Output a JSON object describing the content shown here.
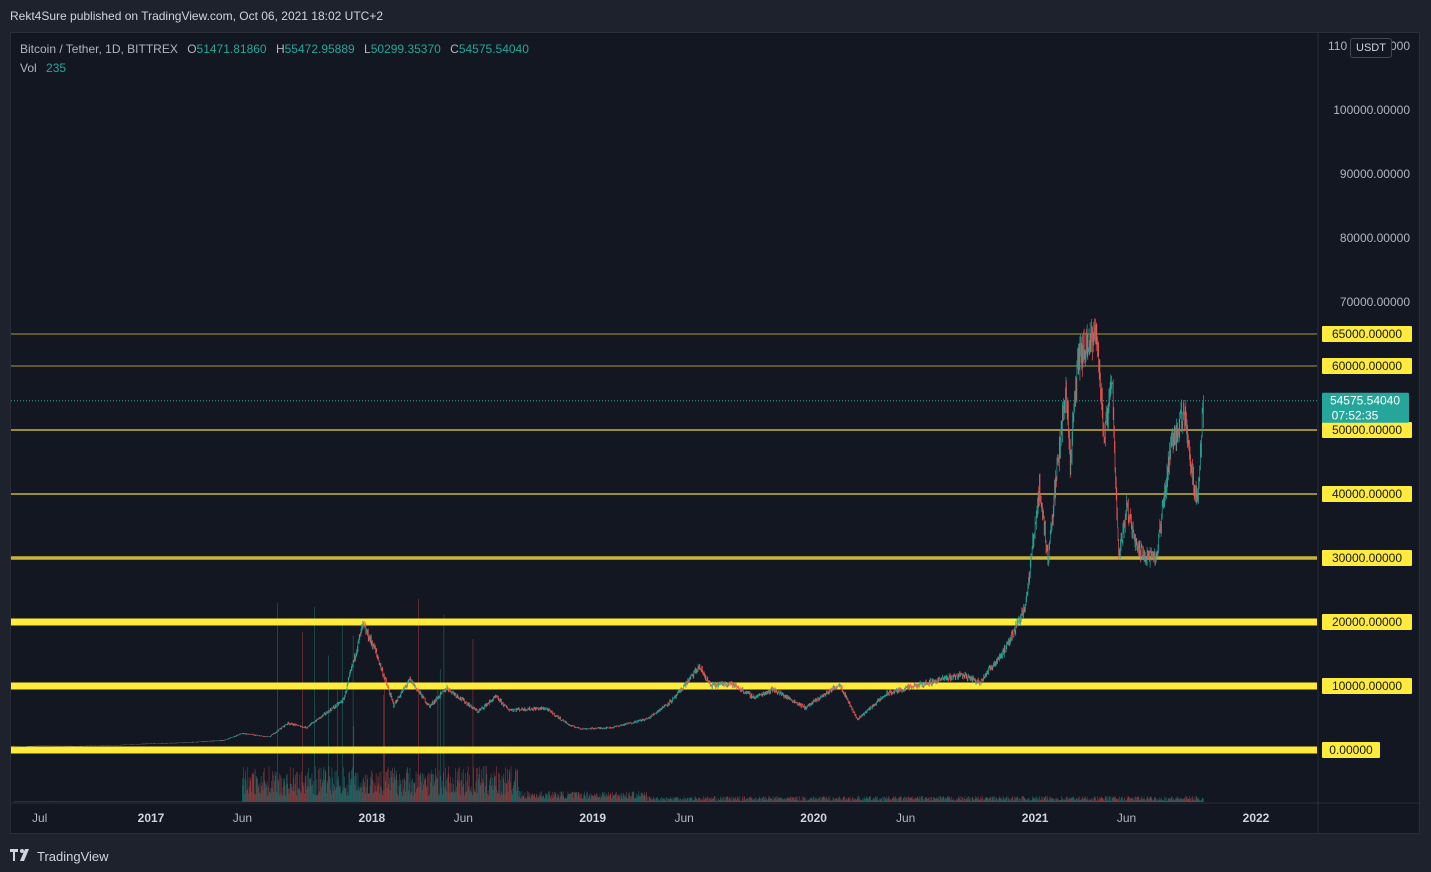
{
  "header": {
    "published": "Rekt4Sure published on TradingView.com, Oct 06, 2021 18:02 UTC+2"
  },
  "legend": {
    "symbol": "Bitcoin / Tether, 1D, BITTREX",
    "open_label": "O",
    "open": "51471.81860",
    "high_label": "H",
    "high": "55472.95889",
    "low_label": "L",
    "low": "50299.35370",
    "close_label": "C",
    "close": "54575.54040",
    "vol_label": "Vol",
    "vol": "235"
  },
  "currency_badge": "USDT",
  "footer": {
    "brand": "TradingView"
  },
  "chart_data": {
    "type": "candlestick",
    "symbol": "Bitcoin / Tether",
    "interval": "1D",
    "exchange": "BITTREX",
    "y_axis": {
      "ticks": [
        0,
        10000,
        20000,
        30000,
        40000,
        50000,
        60000,
        65000,
        70000,
        80000,
        90000,
        100000
      ],
      "tick_labels": [
        "0.00000",
        "10000.00000",
        "20000.00000",
        "30000.00000",
        "40000.00000",
        "50000.00000",
        "60000.00000",
        "65000.00000",
        "70000.00000",
        "80000.00000",
        "90000.00000",
        "100000.00000"
      ],
      "top_partial_label": "110",
      "top_partial_suffix": "000",
      "range": [
        -2000,
        112000
      ]
    },
    "x_axis": {
      "tick_labels": [
        "Jul",
        "2017",
        "Jun",
        "2018",
        "Jun",
        "2019",
        "Jun",
        "2020",
        "Jun",
        "2021",
        "Jun",
        "2022"
      ],
      "ticks": [
        "2016-07-01",
        "2017-01-01",
        "2017-06-01",
        "2018-01-01",
        "2018-06-01",
        "2019-01-01",
        "2019-06-01",
        "2020-01-01",
        "2020-06-01",
        "2021-01-01",
        "2021-06-01",
        "2022-01-01"
      ]
    },
    "horizontal_levels": [
      {
        "price": 0,
        "label": "0.00000",
        "color": "#ffeb3b",
        "weight": "thick"
      },
      {
        "price": 10000,
        "label": "10000.00000",
        "color": "#ffeb3b",
        "weight": "thick"
      },
      {
        "price": 20000,
        "label": "20000.00000",
        "color": "#ffeb3b",
        "weight": "thick"
      },
      {
        "price": 30000,
        "label": "30000.00000",
        "color": "#c9b33a",
        "weight": "medium"
      },
      {
        "price": 40000,
        "label": "40000.00000",
        "color": "#c9b33a",
        "weight": "thin"
      },
      {
        "price": 50000,
        "label": "50000.00000",
        "color": "#c9b33a",
        "weight": "thin"
      },
      {
        "price": 60000,
        "label": "60000.00000",
        "color": "#a99a38",
        "weight": "hairline"
      },
      {
        "price": 65000,
        "label": "65000.00000",
        "color": "#a99a38",
        "weight": "hairline"
      }
    ],
    "last_price": {
      "price": 54575.5404,
      "label": "54575.54040",
      "countdown": "07:52:35",
      "color": "#26a69a"
    },
    "price_path": [
      [
        "2016-05-20",
        440
      ],
      [
        "2016-07-01",
        660
      ],
      [
        "2016-09-01",
        600
      ],
      [
        "2016-11-01",
        720
      ],
      [
        "2017-01-01",
        1000
      ],
      [
        "2017-03-01",
        1150
      ],
      [
        "2017-05-01",
        1500
      ],
      [
        "2017-06-01",
        2600
      ],
      [
        "2017-07-15",
        2000
      ],
      [
        "2017-08-15",
        4200
      ],
      [
        "2017-09-15",
        3500
      ],
      [
        "2017-10-15",
        5600
      ],
      [
        "2017-11-15",
        7800
      ],
      [
        "2017-12-17",
        19500
      ],
      [
        "2018-01-05",
        16000
      ],
      [
        "2018-02-06",
        7000
      ],
      [
        "2018-03-05",
        11000
      ],
      [
        "2018-04-06",
        6800
      ],
      [
        "2018-05-05",
        9700
      ],
      [
        "2018-06-25",
        6000
      ],
      [
        "2018-07-25",
        8300
      ],
      [
        "2018-08-15",
        6300
      ],
      [
        "2018-10-15",
        6500
      ],
      [
        "2018-11-25",
        3800
      ],
      [
        "2018-12-15",
        3300
      ],
      [
        "2019-02-01",
        3500
      ],
      [
        "2019-04-02",
        4900
      ],
      [
        "2019-05-15",
        8000
      ],
      [
        "2019-06-26",
        13000
      ],
      [
        "2019-07-15",
        10000
      ],
      [
        "2019-08-15",
        10500
      ],
      [
        "2019-09-25",
        8200
      ],
      [
        "2019-10-26",
        9500
      ],
      [
        "2019-12-18",
        6600
      ],
      [
        "2020-02-13",
        10300
      ],
      [
        "2020-03-13",
        4800
      ],
      [
        "2020-05-01",
        8800
      ],
      [
        "2020-06-01",
        9600
      ],
      [
        "2020-07-28",
        11000
      ],
      [
        "2020-09-01",
        11800
      ],
      [
        "2020-10-01",
        10600
      ],
      [
        "2020-11-15",
        16000
      ],
      [
        "2020-12-17",
        23000
      ],
      [
        "2021-01-08",
        41000
      ],
      [
        "2021-01-22",
        30000
      ],
      [
        "2021-02-21",
        57000
      ],
      [
        "2021-02-28",
        45000
      ],
      [
        "2021-03-13",
        61000
      ],
      [
        "2021-04-14",
        64800
      ],
      [
        "2021-04-25",
        48000
      ],
      [
        "2021-05-08",
        58000
      ],
      [
        "2021-05-19",
        30000
      ],
      [
        "2021-06-01",
        38000
      ],
      [
        "2021-06-22",
        31000
      ],
      [
        "2021-07-20",
        29800
      ],
      [
        "2021-08-14",
        48000
      ],
      [
        "2021-09-06",
        52800
      ],
      [
        "2021-09-21",
        40500
      ],
      [
        "2021-09-28",
        41000
      ],
      [
        "2021-10-06",
        55400
      ]
    ],
    "volume": {
      "label": "Vol",
      "last": 235,
      "color_up": "#26a69a",
      "color_down": "#ef5350"
    },
    "grid": false
  }
}
